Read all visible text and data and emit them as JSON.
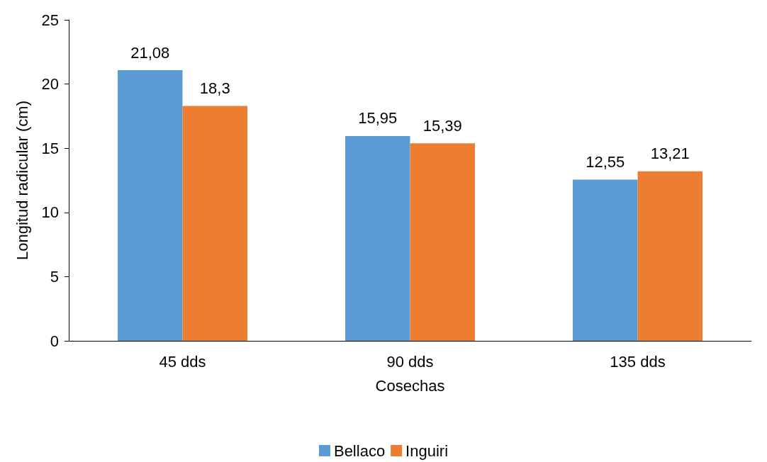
{
  "chart_data": {
    "type": "bar",
    "xlabel": "Cosechas",
    "ylabel": "Longitud radicular (cm)",
    "categories": [
      "45 dds",
      "90 dds",
      "135 dds"
    ],
    "series": [
      {
        "name": "Bellaco",
        "color": "#5b9bd5",
        "values": [
          21.08,
          15.95,
          12.55
        ],
        "value_labels": [
          "21,08",
          "15,95",
          "12,55"
        ]
      },
      {
        "name": "Inguiri",
        "color": "#ed7d31",
        "values": [
          18.3,
          15.39,
          13.21
        ],
        "value_labels": [
          "18,3",
          "15,39",
          "13,21"
        ]
      }
    ],
    "ylim": [
      0,
      25
    ],
    "yticks": [
      0,
      5,
      10,
      15,
      20,
      25
    ],
    "grid": false,
    "legend": "bottom"
  }
}
